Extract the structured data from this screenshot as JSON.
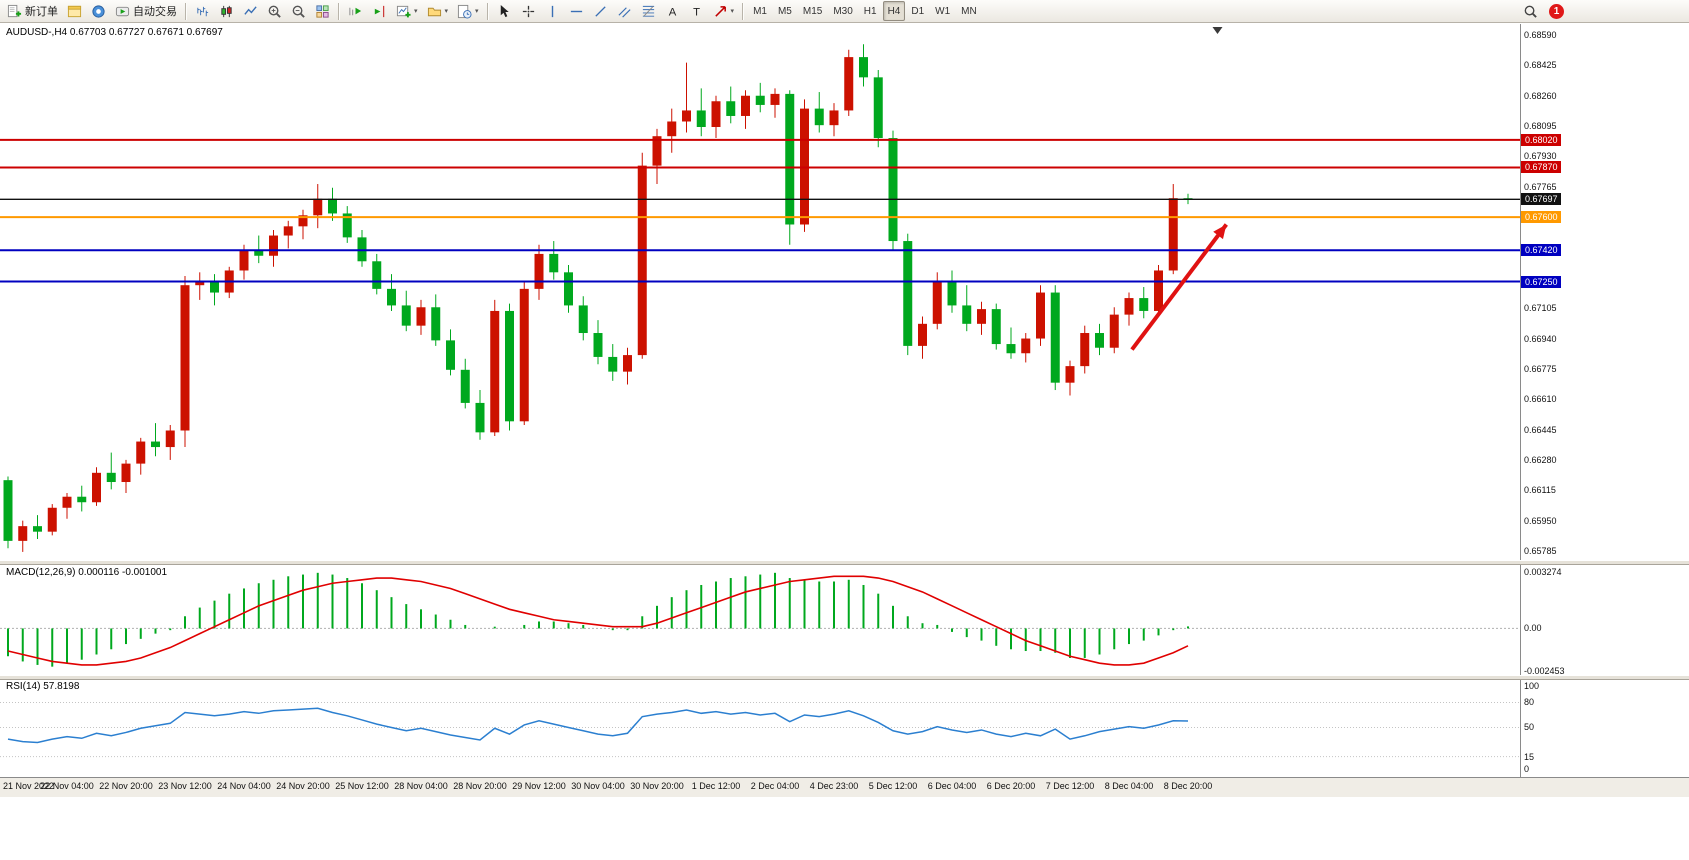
{
  "toolbar": {
    "new_order_label": "新订单",
    "autotrading_label": "自动交易",
    "timeframes": [
      "M1",
      "M5",
      "M15",
      "M30",
      "H1",
      "H4",
      "D1",
      "W1",
      "MN"
    ],
    "active_timeframe": "H4",
    "alert_count": "1"
  },
  "chart_data": {
    "type": "candlestick",
    "symbol": "AUDUSD-",
    "period": "H4",
    "header_text": "AUDUSD-,H4  0.67703 0.67727 0.67671 0.67697",
    "current_ohlc": {
      "open": 0.67703,
      "high": 0.67727,
      "low": 0.67671,
      "close": 0.67697
    },
    "candle_colors": {
      "up": "#cc1100",
      "down": "#00a81e"
    },
    "price_axis": {
      "range": [
        0.65736,
        0.6865
      ],
      "labels": [
        0.6859,
        0.68425,
        0.6826,
        0.68095,
        0.6793,
        0.67765,
        0.67105,
        0.6694,
        0.66775,
        0.6661,
        0.66445,
        0.6628,
        0.66115,
        0.6595,
        0.65785
      ]
    },
    "time_axis": {
      "labels": [
        "21 Nov 2022",
        "22 Nov 04:00",
        "22 Nov 20:00",
        "23 Nov 12:00",
        "24 Nov 04:00",
        "24 Nov 20:00",
        "25 Nov 12:00",
        "28 Nov 04:00",
        "28 Nov 20:00",
        "29 Nov 12:00",
        "30 Nov 04:00",
        "30 Nov 20:00",
        "1 Dec 12:00",
        "2 Dec 04:00",
        "4 Dec 23:00",
        "5 Dec 12:00",
        "6 Dec 04:00",
        "6 Dec 20:00",
        "7 Dec 12:00",
        "8 Dec 04:00",
        "8 Dec 20:00"
      ],
      "label_candle_indices": [
        0,
        4,
        8,
        12,
        16,
        20,
        24,
        28,
        32,
        36,
        40,
        44,
        48,
        52,
        56,
        60,
        64,
        68,
        72,
        76,
        80
      ]
    },
    "candles": [
      [
        0.6617,
        0.6619,
        0.658,
        0.6584
      ],
      [
        0.6584,
        0.6595,
        0.6578,
        0.6592
      ],
      [
        0.6592,
        0.6598,
        0.6585,
        0.6589
      ],
      [
        0.6589,
        0.6604,
        0.6587,
        0.6602
      ],
      [
        0.6602,
        0.661,
        0.6596,
        0.6608
      ],
      [
        0.6608,
        0.6614,
        0.66,
        0.6605
      ],
      [
        0.6605,
        0.6624,
        0.6603,
        0.6621
      ],
      [
        0.6621,
        0.6632,
        0.6612,
        0.6616
      ],
      [
        0.6616,
        0.6628,
        0.661,
        0.6626
      ],
      [
        0.6626,
        0.664,
        0.662,
        0.6638
      ],
      [
        0.6638,
        0.6648,
        0.663,
        0.6635
      ],
      [
        0.6635,
        0.6647,
        0.6628,
        0.6644
      ],
      [
        0.6644,
        0.6728,
        0.6635,
        0.6723
      ],
      [
        0.6723,
        0.673,
        0.6715,
        0.6725
      ],
      [
        0.6725,
        0.6729,
        0.6712,
        0.6719
      ],
      [
        0.6719,
        0.6733,
        0.6716,
        0.6731
      ],
      [
        0.6731,
        0.6745,
        0.6726,
        0.6742
      ],
      [
        0.6742,
        0.675,
        0.6735,
        0.6739
      ],
      [
        0.6739,
        0.6753,
        0.6733,
        0.675
      ],
      [
        0.675,
        0.6758,
        0.6743,
        0.6755
      ],
      [
        0.6755,
        0.6764,
        0.6748,
        0.6761
      ],
      [
        0.6761,
        0.6778,
        0.6754,
        0.677
      ],
      [
        0.677,
        0.6776,
        0.6758,
        0.6762
      ],
      [
        0.6762,
        0.6766,
        0.6746,
        0.6749
      ],
      [
        0.6749,
        0.6753,
        0.6733,
        0.6736
      ],
      [
        0.6736,
        0.674,
        0.6718,
        0.6721
      ],
      [
        0.6721,
        0.6729,
        0.6709,
        0.6712
      ],
      [
        0.6712,
        0.672,
        0.6698,
        0.6701
      ],
      [
        0.6701,
        0.6715,
        0.6696,
        0.6711
      ],
      [
        0.6711,
        0.6718,
        0.669,
        0.6693
      ],
      [
        0.6693,
        0.6699,
        0.6674,
        0.6677
      ],
      [
        0.6677,
        0.6683,
        0.6656,
        0.6659
      ],
      [
        0.6659,
        0.6666,
        0.6639,
        0.6643
      ],
      [
        0.6643,
        0.6715,
        0.6641,
        0.6709
      ],
      [
        0.6709,
        0.6713,
        0.6644,
        0.6649
      ],
      [
        0.6649,
        0.6725,
        0.6647,
        0.6721
      ],
      [
        0.6721,
        0.6745,
        0.6715,
        0.674
      ],
      [
        0.674,
        0.6747,
        0.6726,
        0.673
      ],
      [
        0.673,
        0.6734,
        0.6708,
        0.6712
      ],
      [
        0.6712,
        0.6717,
        0.6693,
        0.6697
      ],
      [
        0.6697,
        0.6704,
        0.668,
        0.6684
      ],
      [
        0.6684,
        0.6691,
        0.6671,
        0.6676
      ],
      [
        0.6676,
        0.6689,
        0.6669,
        0.6685
      ],
      [
        0.6685,
        0.6795,
        0.6683,
        0.6788
      ],
      [
        0.6788,
        0.6808,
        0.6778,
        0.6804
      ],
      [
        0.6804,
        0.6819,
        0.6795,
        0.6812
      ],
      [
        0.6812,
        0.6844,
        0.6806,
        0.6818
      ],
      [
        0.6818,
        0.683,
        0.6804,
        0.6809
      ],
      [
        0.6809,
        0.6826,
        0.6803,
        0.6823
      ],
      [
        0.6823,
        0.6831,
        0.6811,
        0.6815
      ],
      [
        0.6815,
        0.6829,
        0.6808,
        0.6826
      ],
      [
        0.6826,
        0.6833,
        0.6817,
        0.6821
      ],
      [
        0.6821,
        0.683,
        0.6814,
        0.6827
      ],
      [
        0.6827,
        0.6829,
        0.6745,
        0.6756
      ],
      [
        0.6756,
        0.6824,
        0.6752,
        0.6819
      ],
      [
        0.6819,
        0.6828,
        0.6806,
        0.681
      ],
      [
        0.681,
        0.6822,
        0.6804,
        0.6818
      ],
      [
        0.6818,
        0.6851,
        0.6815,
        0.6847
      ],
      [
        0.6847,
        0.6854,
        0.6831,
        0.6836
      ],
      [
        0.6836,
        0.684,
        0.6798,
        0.6803
      ],
      [
        0.6803,
        0.6807,
        0.6742,
        0.6747
      ],
      [
        0.6747,
        0.6751,
        0.6685,
        0.669
      ],
      [
        0.669,
        0.6706,
        0.6683,
        0.6702
      ],
      [
        0.6702,
        0.673,
        0.6699,
        0.6725
      ],
      [
        0.6725,
        0.6731,
        0.6708,
        0.6712
      ],
      [
        0.6712,
        0.6723,
        0.6698,
        0.6702
      ],
      [
        0.6702,
        0.6714,
        0.6696,
        0.671
      ],
      [
        0.671,
        0.6713,
        0.6688,
        0.6691
      ],
      [
        0.6691,
        0.67,
        0.6683,
        0.6686
      ],
      [
        0.6686,
        0.6697,
        0.6681,
        0.6694
      ],
      [
        0.6694,
        0.6723,
        0.669,
        0.6719
      ],
      [
        0.6719,
        0.6723,
        0.6666,
        0.667
      ],
      [
        0.667,
        0.6682,
        0.6663,
        0.6679
      ],
      [
        0.6679,
        0.6701,
        0.6675,
        0.6697
      ],
      [
        0.6697,
        0.6702,
        0.6685,
        0.6689
      ],
      [
        0.6689,
        0.6711,
        0.6686,
        0.6707
      ],
      [
        0.6707,
        0.6719,
        0.6701,
        0.6716
      ],
      [
        0.6716,
        0.6722,
        0.6705,
        0.6709
      ],
      [
        0.6709,
        0.6734,
        0.6706,
        0.6731
      ],
      [
        0.6731,
        0.6778,
        0.6729,
        0.67703
      ],
      [
        0.67703,
        0.67727,
        0.67671,
        0.67697
      ]
    ],
    "horizontal_lines": [
      {
        "price": 0.6802,
        "label": "0.68020",
        "color": "#cc0000",
        "style": "resistance-line"
      },
      {
        "price": 0.6787,
        "label": "0.67870",
        "color": "#cc0000",
        "style": "resistance-line"
      },
      {
        "price": 0.67697,
        "label": "0.67697",
        "color": "#111111",
        "style": "current-price"
      },
      {
        "price": 0.676,
        "label": "0.67600",
        "color": "#ff9900",
        "style": "pivot-line"
      },
      {
        "price": 0.6742,
        "label": "0.67420",
        "color": "#0000c0",
        "style": "support-line"
      },
      {
        "price": 0.6725,
        "label": "0.67250",
        "color": "#0000c0",
        "style": "support-line"
      }
    ],
    "indicators": {
      "macd": {
        "label": "MACD(12,26,9)",
        "main_value_display": "0.000116",
        "signal_value_display": "-0.001001",
        "axis_labels": [
          "0.003274",
          "0.00",
          "-0.002453"
        ],
        "range": [
          -0.00268,
          0.00365
        ],
        "histogram_color": "#00a81e",
        "signal_color": "#e00000",
        "histogram": [
          -0.0016,
          -0.0019,
          -0.0021,
          -0.0022,
          -0.002,
          -0.0018,
          -0.0015,
          -0.0012,
          -0.0009,
          -0.0006,
          -0.0003,
          -0.0001,
          0.0007,
          0.0012,
          0.0016,
          0.002,
          0.0023,
          0.0026,
          0.0028,
          0.003,
          0.0031,
          0.0032,
          0.0031,
          0.0029,
          0.0026,
          0.0022,
          0.0018,
          0.0014,
          0.0011,
          0.0008,
          0.0005,
          0.0002,
          0.0,
          0.0001,
          0.0,
          0.0002,
          0.0004,
          0.0004,
          0.0003,
          0.0002,
          0.0,
          -0.0001,
          -0.0001,
          0.0007,
          0.0013,
          0.0018,
          0.0022,
          0.0025,
          0.0027,
          0.0029,
          0.003,
          0.0031,
          0.0032,
          0.0029,
          0.0028,
          0.0027,
          0.0027,
          0.0028,
          0.0025,
          0.002,
          0.0013,
          0.0007,
          0.0003,
          0.0002,
          -0.0002,
          -0.0005,
          -0.0007,
          -0.001,
          -0.0012,
          -0.0013,
          -0.0013,
          -0.0014,
          -0.0017,
          -0.0017,
          -0.0015,
          -0.0012,
          -0.0009,
          -0.0007,
          -0.0004,
          -0.0001,
          0.000116
        ],
        "signal": [
          -0.0013,
          -0.0015,
          -0.0017,
          -0.0019,
          -0.002,
          -0.0021,
          -0.0021,
          -0.002,
          -0.0019,
          -0.0017,
          -0.0014,
          -0.0011,
          -0.0007,
          -0.0003,
          0.0001,
          0.0005,
          0.0009,
          0.0013,
          0.0016,
          0.0019,
          0.0022,
          0.0024,
          0.0026,
          0.0027,
          0.0028,
          0.0029,
          0.0029,
          0.0028,
          0.0027,
          0.0025,
          0.0023,
          0.002,
          0.0017,
          0.0014,
          0.0011,
          0.0009,
          0.0007,
          0.0005,
          0.0004,
          0.0003,
          0.0002,
          0.0001,
          0.0001,
          0.0001,
          0.0003,
          0.0006,
          0.0009,
          0.0012,
          0.0015,
          0.0018,
          0.0021,
          0.0023,
          0.0025,
          0.0027,
          0.0028,
          0.0029,
          0.003,
          0.003,
          0.003,
          0.0029,
          0.0027,
          0.0024,
          0.0021,
          0.0017,
          0.0013,
          0.0009,
          0.0005,
          0.0001,
          -0.0003,
          -0.0007,
          -0.001,
          -0.0013,
          -0.0016,
          -0.0018,
          -0.002,
          -0.0021,
          -0.0021,
          -0.002,
          -0.0017,
          -0.0014,
          -0.001001
        ]
      },
      "rsi": {
        "label": "RSI(14)",
        "value_display": "57.8198",
        "axis_labels": [
          "100",
          "80",
          "50",
          "15",
          "0"
        ],
        "levels": [
          80,
          50,
          15
        ],
        "range": [
          -9.5,
          107
        ],
        "color": "#2b7fd0",
        "values": [
          36,
          33,
          32,
          36,
          39,
          37,
          43,
          40,
          44,
          49,
          52,
          55,
          68,
          66,
          64,
          66,
          69,
          67,
          70,
          71,
          72,
          73,
          68,
          64,
          59,
          54,
          50,
          46,
          49,
          45,
          41,
          38,
          35,
          49,
          42,
          53,
          58,
          54,
          50,
          46,
          42,
          40,
          43,
          63,
          66,
          68,
          71,
          67,
          69,
          66,
          68,
          65,
          67,
          57,
          65,
          63,
          66,
          70,
          64,
          56,
          46,
          42,
          45,
          51,
          47,
          44,
          47,
          42,
          39,
          43,
          40,
          48,
          36,
          40,
          45,
          48,
          51,
          49,
          53,
          58,
          57.8198
        ]
      }
    },
    "annotations": [
      {
        "type": "arrow",
        "color": "#e01212",
        "from_index": 76.2,
        "from_price": 0.6688,
        "to_index": 82.6,
        "to_price": 0.6756,
        "width": 4
      }
    ],
    "shift_marker_index": 82
  }
}
